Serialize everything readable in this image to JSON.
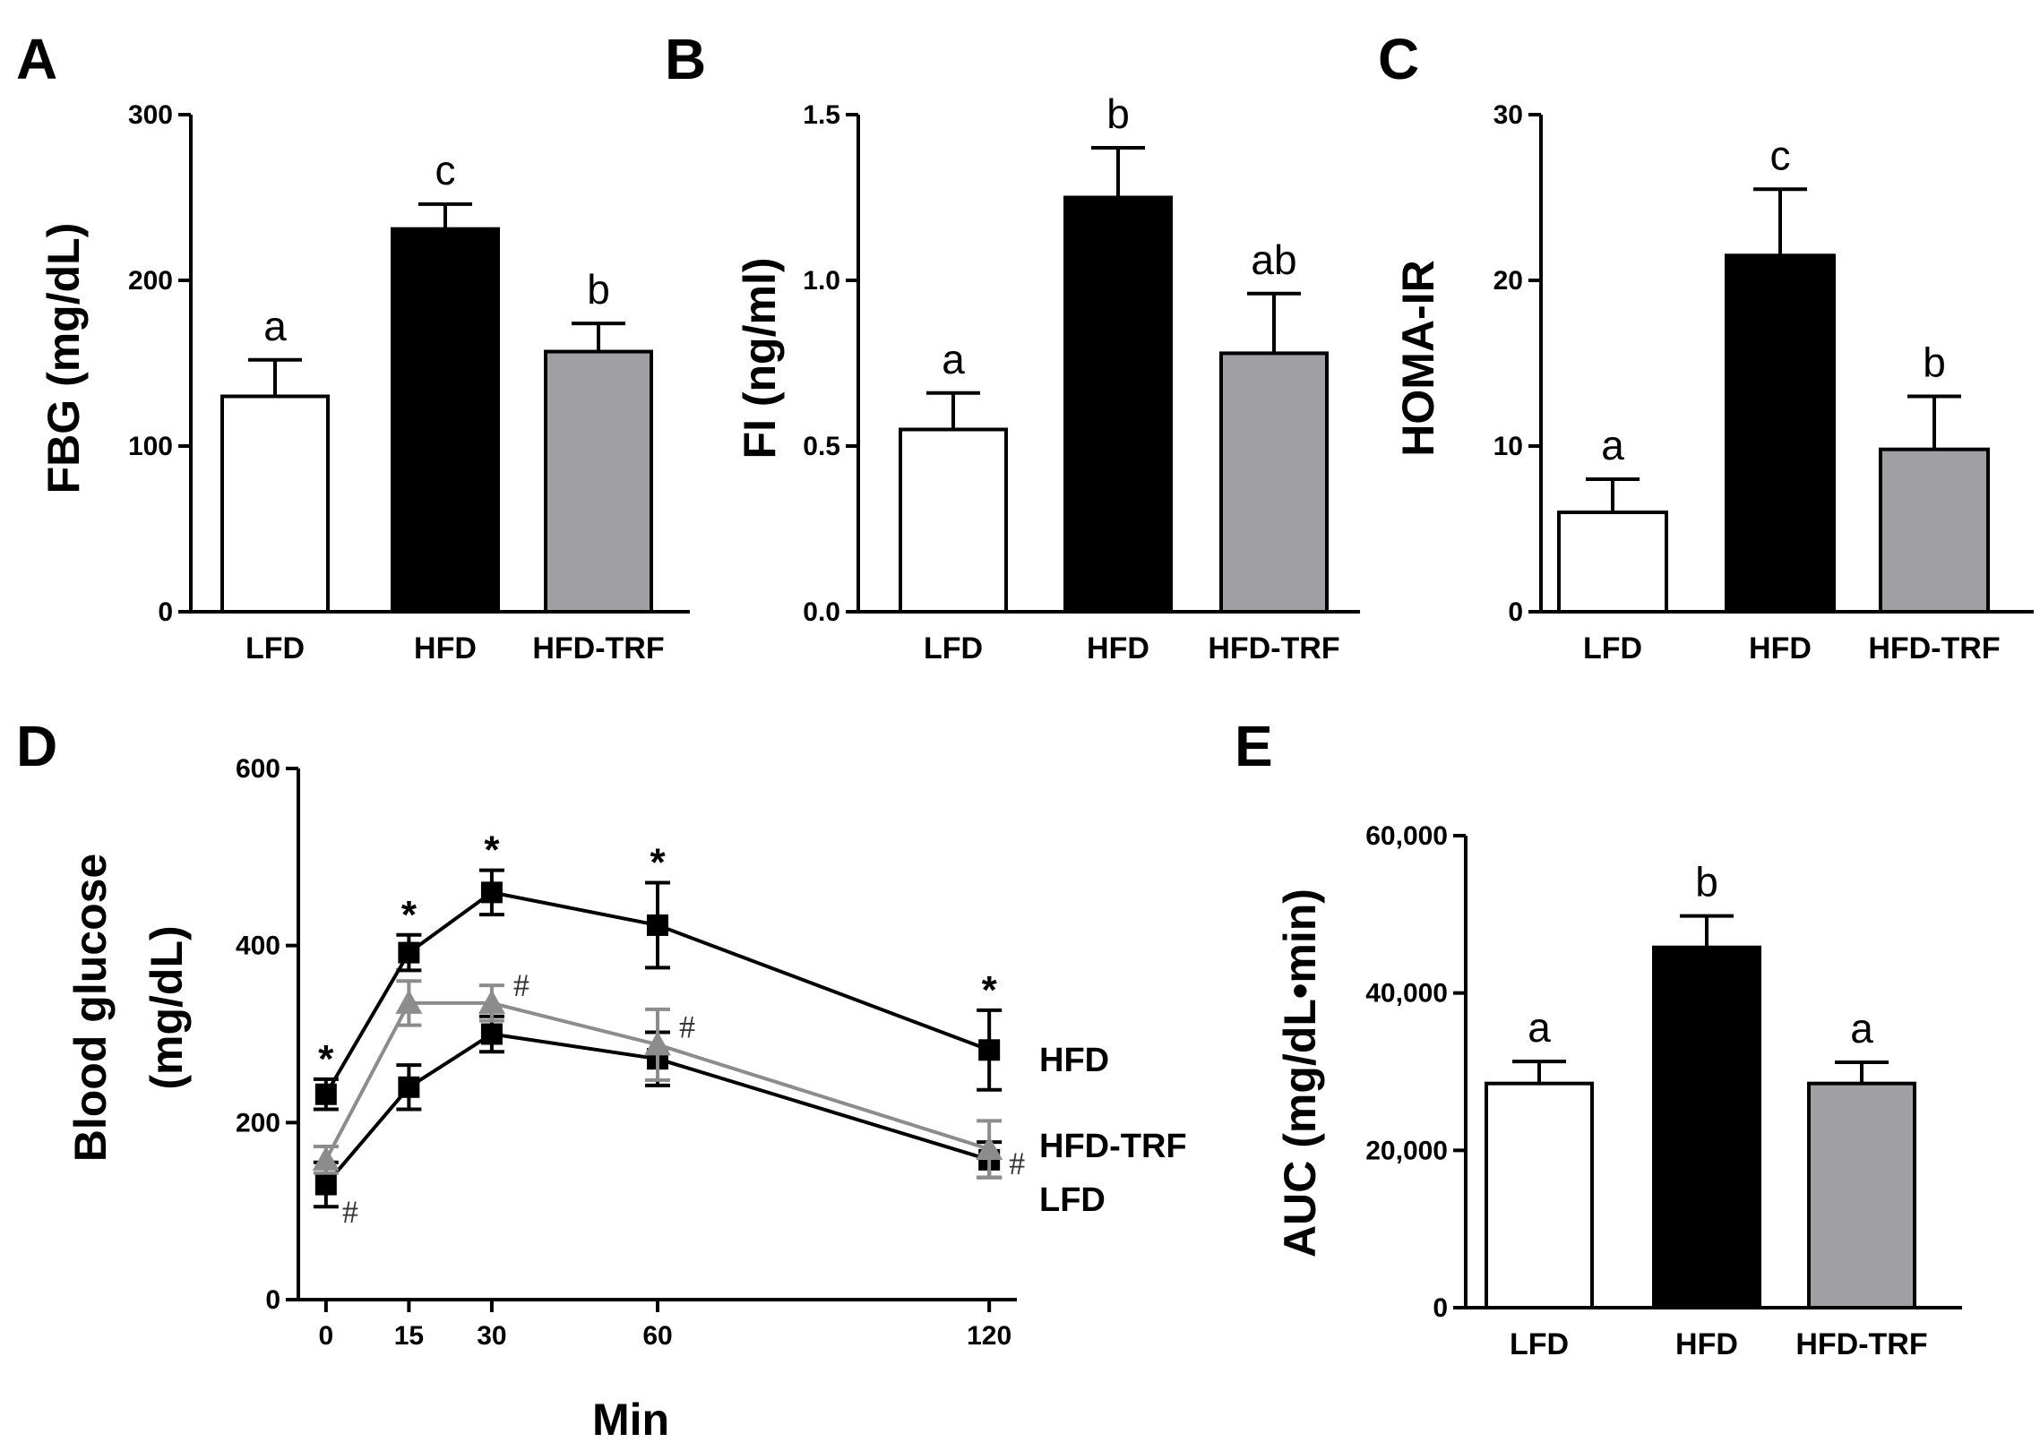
{
  "figure": {
    "panels": [
      "A",
      "B",
      "C",
      "D",
      "E"
    ]
  },
  "colors": {
    "LFD": "#ffffff",
    "HFD": "#000000",
    "HFD-TRF": "#a0a0a4",
    "line_HFD": "#000000",
    "line_HFD-TRF": "#8c8c8c",
    "line_LFD": "#000000"
  },
  "chart_data": [
    {
      "panel": "A",
      "type": "bar",
      "title": "",
      "xlabel": "",
      "ylabel": "FBG (mg/dL)",
      "categories": [
        "LFD",
        "HFD",
        "HFD-TRF"
      ],
      "values": [
        130,
        231,
        157
      ],
      "errors": [
        22,
        15,
        17
      ],
      "sig_letters": [
        "a",
        "c",
        "b"
      ],
      "ylim": [
        0,
        300
      ],
      "yticks": [
        0,
        100,
        200,
        300
      ],
      "ytick_labels": [
        "0",
        "100",
        "200",
        "300"
      ]
    },
    {
      "panel": "B",
      "type": "bar",
      "title": "",
      "xlabel": "",
      "ylabel": "FI (ng/ml)",
      "categories": [
        "LFD",
        "HFD",
        "HFD-TRF"
      ],
      "values": [
        0.55,
        1.25,
        0.78
      ],
      "errors": [
        0.11,
        0.15,
        0.18
      ],
      "sig_letters": [
        "a",
        "b",
        "ab"
      ],
      "ylim": [
        0,
        1.5
      ],
      "yticks": [
        0,
        0.5,
        1.0,
        1.5
      ],
      "ytick_labels": [
        "0.0",
        "0.5",
        "1.0",
        "1.5"
      ]
    },
    {
      "panel": "C",
      "type": "bar",
      "title": "",
      "xlabel": "",
      "ylabel": "HOMA-IR",
      "categories": [
        "LFD",
        "HFD",
        "HFD-TRF"
      ],
      "values": [
        6,
        21.5,
        9.8
      ],
      "errors": [
        2,
        4,
        3.2
      ],
      "sig_letters": [
        "a",
        "c",
        "b"
      ],
      "ylim": [
        0,
        30
      ],
      "yticks": [
        0,
        10,
        20,
        30
      ],
      "ytick_labels": [
        "0",
        "10",
        "20",
        "30"
      ]
    },
    {
      "panel": "D",
      "type": "line",
      "title": "",
      "xlabel": "Min",
      "ylabel": "Blood glucose (mg/dL)",
      "ylabel_lines": [
        "Blood glucose",
        "(mg/dL)"
      ],
      "x": [
        0,
        15,
        30,
        60,
        120
      ],
      "xtick_labels": [
        "0",
        "15",
        "30",
        "60",
        "120"
      ],
      "xlim": [
        -5,
        125
      ],
      "ylim": [
        0,
        600
      ],
      "yticks": [
        0,
        200,
        400,
        600
      ],
      "ytick_labels": [
        "0",
        "200",
        "400",
        "600"
      ],
      "series": [
        {
          "name": "HFD",
          "values": [
            232,
            392,
            460,
            423,
            282
          ],
          "errors": [
            17,
            20,
            25,
            48,
            45
          ],
          "marker": "square"
        },
        {
          "name": "HFD-TRF",
          "values": [
            158,
            335,
            335,
            288,
            170
          ],
          "errors": [
            15,
            25,
            20,
            40,
            32
          ],
          "marker": "triangle"
        },
        {
          "name": "LFD",
          "values": [
            130,
            240,
            300,
            272,
            158
          ],
          "errors": [
            25,
            25,
            20,
            30,
            20
          ],
          "marker": "square"
        }
      ],
      "annotations": [
        {
          "text": "*",
          "x": 0,
          "series": "HFD"
        },
        {
          "text": "*",
          "x": 15,
          "series": "HFD"
        },
        {
          "text": "*",
          "x": 30,
          "series": "HFD"
        },
        {
          "text": "*",
          "x": 60,
          "series": "HFD"
        },
        {
          "text": "*",
          "x": 120,
          "series": "HFD"
        },
        {
          "text": "#",
          "x": 0,
          "series": "HFD-TRF"
        },
        {
          "text": "#",
          "x": 30,
          "series": "HFD-TRF"
        },
        {
          "text": "#",
          "x": 60,
          "series": "HFD-TRF"
        },
        {
          "text": "#",
          "x": 120,
          "series": "HFD-TRF"
        }
      ],
      "legend": [
        "HFD",
        "HFD-TRF",
        "LFD"
      ]
    },
    {
      "panel": "E",
      "type": "bar",
      "title": "",
      "xlabel": "",
      "ylabel": "AUC (mg/dL•min)",
      "categories": [
        "LFD",
        "HFD",
        "HFD-TRF"
      ],
      "values": [
        28500,
        45800,
        28500
      ],
      "errors": [
        2800,
        4000,
        2700
      ],
      "sig_letters": [
        "a",
        "b",
        "a"
      ],
      "ylim": [
        0,
        60000
      ],
      "yticks": [
        0,
        20000,
        40000,
        60000
      ],
      "ytick_labels": [
        "0",
        "20,000",
        "40,000",
        "60,000"
      ]
    }
  ]
}
